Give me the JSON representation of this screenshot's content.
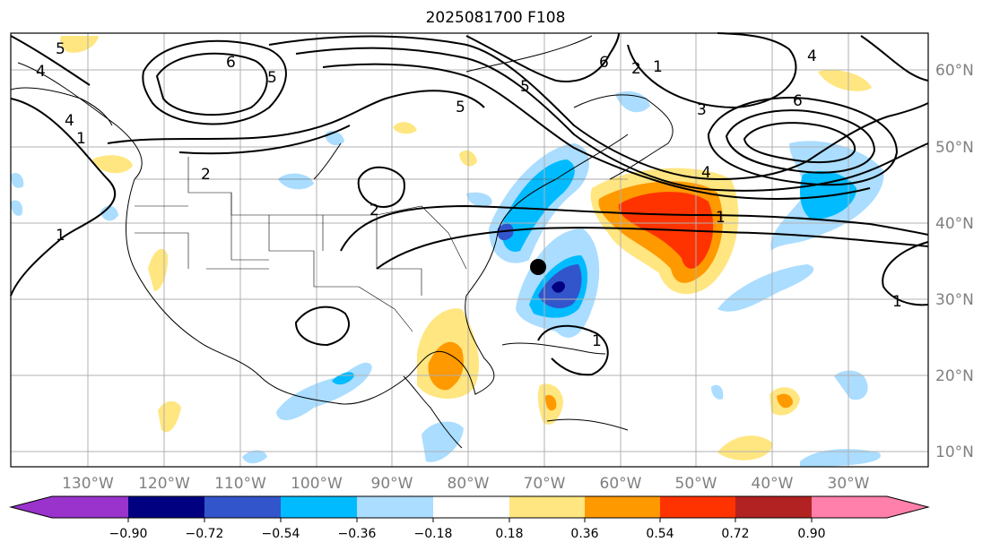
{
  "title": "2025081700 F108",
  "map": {
    "lon_labels": [
      "130°W",
      "120°W",
      "110°W",
      "100°W",
      "90°W",
      "80°W",
      "70°W",
      "60°W",
      "50°W",
      "40°W",
      "30°W"
    ],
    "lat_labels": [
      "60°N",
      "50°N",
      "40°N",
      "30°N",
      "20°N",
      "10°N"
    ],
    "contour_labels": [
      "5",
      "4",
      "4",
      "1",
      "6",
      "5",
      "6",
      "5",
      "2",
      "1",
      "4",
      "6",
      "3",
      "5",
      "2",
      "4",
      "2",
      "1",
      "1",
      "1",
      "1"
    ],
    "storm_marker": "black-dot"
  },
  "colorbar": {
    "tick_labels": [
      "−0.90",
      "−0.72",
      "−0.54",
      "−0.36",
      "−0.18",
      "0.18",
      "0.36",
      "0.54",
      "0.72",
      "0.90"
    ],
    "colors": [
      "#9933cc",
      "#000080",
      "#3355cc",
      "#00bbff",
      "#aaddff",
      "#ffffff",
      "#ffe680",
      "#ff9900",
      "#ff3300",
      "#b22222",
      "#ff80aa"
    ]
  }
}
